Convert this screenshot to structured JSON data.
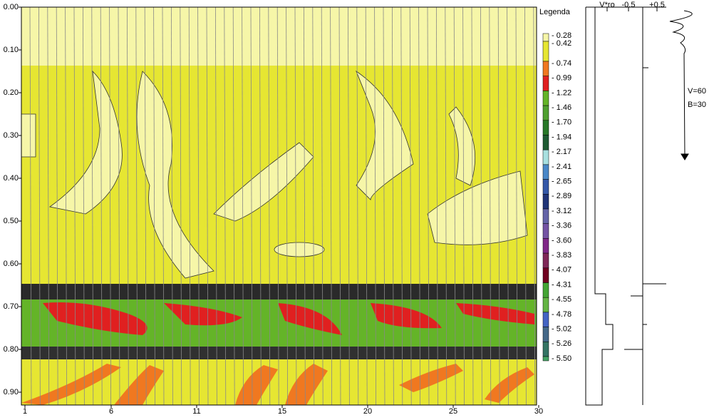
{
  "plot": {
    "yticks": [
      "0.00",
      "0.10",
      "0.20",
      "0.30",
      "0.40",
      "0.50",
      "0.60",
      "0.70",
      "0.80",
      "0.90"
    ],
    "xticks": [
      "1",
      "6",
      "11",
      "15",
      "20",
      "25",
      "30"
    ]
  },
  "legend": {
    "title": "Legenda",
    "levels": [
      {
        "label": "- 0.28",
        "color": "#f6f6a8"
      },
      {
        "label": "- 0.42",
        "color": "#e6e632"
      },
      {
        "label": "- 0.74",
        "color": "#f07820"
      },
      {
        "label": "- 0.99",
        "color": "#e02020"
      },
      {
        "label": "- 1.22",
        "color": "#64b428"
      },
      {
        "label": "- 1.46",
        "color": "#50a030"
      },
      {
        "label": "- 1.70",
        "color": "#287828"
      },
      {
        "label": "- 1.94",
        "color": "#1e5a32"
      },
      {
        "label": "- 2.17",
        "color": "#a8e0e0"
      },
      {
        "label": "- 2.41",
        "color": "#4a88c8"
      },
      {
        "label": "- 2.65",
        "color": "#3458a8"
      },
      {
        "label": "- 2.89",
        "color": "#203478"
      },
      {
        "label": "- 3.12",
        "color": "#6464a8"
      },
      {
        "label": "- 3.36",
        "color": "#7454a4"
      },
      {
        "label": "- 3.60",
        "color": "#802888"
      },
      {
        "label": "- 3.83",
        "color": "#802858"
      },
      {
        "label": "- 4.07",
        "color": "#700020"
      },
      {
        "label": "- 4.31",
        "color": "#44a434"
      },
      {
        "label": "- 4.55",
        "color": "#64b444"
      },
      {
        "label": "- 4.78",
        "color": "#4464c4"
      },
      {
        "label": "- 5.02",
        "color": "#446888"
      },
      {
        "label": "- 5.26",
        "color": "#347464"
      },
      {
        "label": "- 5.50",
        "color": "#44a464"
      }
    ]
  },
  "profile": {
    "labels": [
      "V*ro",
      "-0.5",
      "+0.5"
    ],
    "velocity": "V=60",
    "b_value": "B=30"
  }
}
